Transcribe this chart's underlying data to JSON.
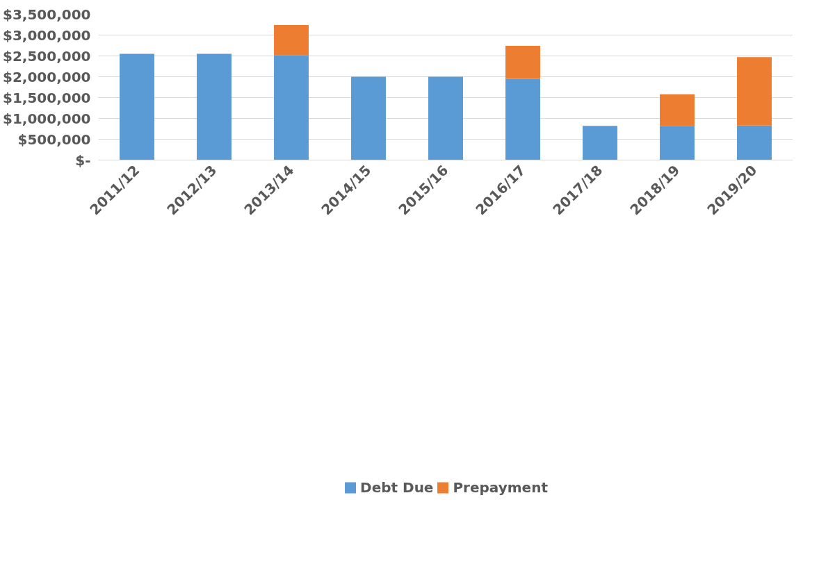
{
  "chart_data": {
    "type": "bar",
    "stacked": true,
    "categories": [
      "2011/12",
      "2012/13",
      "2013/14",
      "2014/15",
      "2015/16",
      "2016/17",
      "2017/18",
      "2018/19",
      "2019/20"
    ],
    "series": [
      {
        "name": "Debt Due",
        "color": "#5b9bd5",
        "values": [
          2550000,
          2550000,
          2520000,
          2000000,
          2000000,
          1950000,
          820000,
          820000,
          830000
        ]
      },
      {
        "name": "Prepayment",
        "color": "#ed7d31",
        "values": [
          0,
          0,
          720000,
          0,
          0,
          790000,
          0,
          760000,
          1640000
        ]
      }
    ],
    "ylim": [
      0,
      3500000
    ],
    "yticks": [
      {
        "value": 0,
        "label": "$-"
      },
      {
        "value": 500000,
        "label": "$500,000"
      },
      {
        "value": 1000000,
        "label": "$1,000,000"
      },
      {
        "value": 1500000,
        "label": "$1,500,000"
      },
      {
        "value": 2000000,
        "label": "$2,000,000"
      },
      {
        "value": 2500000,
        "label": "$2,500,000"
      },
      {
        "value": 3000000,
        "label": "$3,000,000"
      },
      {
        "value": 3500000,
        "label": "$3,500,000"
      }
    ],
    "grid": "y",
    "legend": "bottom"
  }
}
